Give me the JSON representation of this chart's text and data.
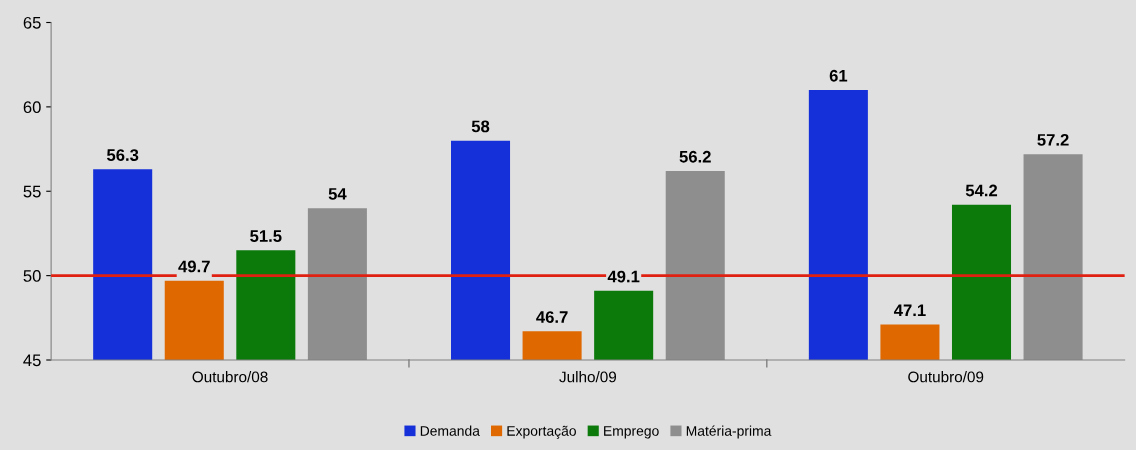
{
  "chart_data": {
    "type": "bar",
    "categories": [
      "Outubro/08",
      "Julho/09",
      "Outubro/09"
    ],
    "series": [
      {
        "name": "Demanda",
        "color": "#1530d8",
        "values": [
          56.3,
          58,
          61
        ]
      },
      {
        "name": "Exportação",
        "color": "#e06800",
        "values": [
          49.7,
          46.7,
          47.1
        ]
      },
      {
        "name": "Emprego",
        "color": "#0b7a0b",
        "values": [
          51.5,
          49.1,
          54.2
        ]
      },
      {
        "name": "Matéria-prima",
        "color": "#8e8e8e",
        "values": [
          54,
          56.2,
          57.2
        ]
      }
    ],
    "ylim": [
      45,
      65
    ],
    "yticks": [
      45,
      50,
      55,
      60,
      65
    ],
    "ref_lines": [
      {
        "axis": "y",
        "value": 50,
        "color": "#e02010",
        "line_style": "solid"
      }
    ],
    "data_labels": true,
    "grid": false,
    "legend": "bottom"
  }
}
